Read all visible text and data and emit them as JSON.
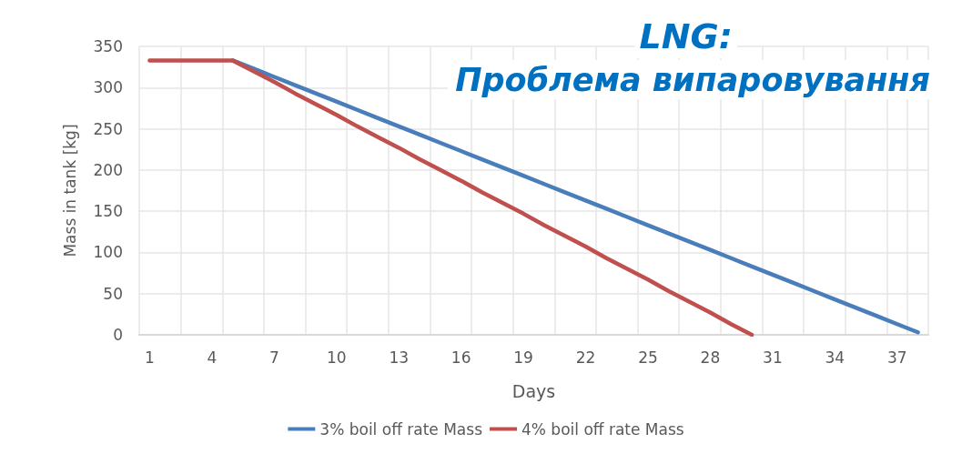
{
  "chart_data": {
    "type": "line",
    "title": "LNG:",
    "subtitle": "Проблема випаровування",
    "xlabel": "Days",
    "ylabel": "Mass in tank [kg]",
    "categories": [
      "1",
      null,
      null,
      "4",
      null,
      null,
      "7",
      null,
      null,
      "10",
      null,
      null,
      "13",
      null,
      null,
      "16",
      null,
      null,
      "19",
      null,
      null,
      "22",
      null,
      null,
      "25",
      null,
      null,
      "28",
      null,
      null,
      "31",
      null,
      null,
      "34",
      null,
      null,
      "37",
      null
    ],
    "series": [
      {
        "name": "3% boil off rate Mass",
        "color": "#4a7ebb",
        "values": [
          null,
          null,
          null,
          null,
          333,
          323,
          313,
          303,
          293,
          283,
          273,
          263,
          253,
          243,
          233,
          223,
          213,
          203,
          193,
          183,
          173,
          163,
          153,
          143,
          133,
          123,
          113,
          103,
          93,
          83,
          73,
          63,
          53,
          43,
          33,
          23,
          13,
          3
        ]
      },
      {
        "name": "4% boil off rate Mass",
        "color": "#c0504d",
        "values": [
          333,
          333,
          333,
          333,
          333,
          320,
          307,
          293,
          280,
          267,
          253,
          240,
          227,
          213,
          200,
          187,
          173,
          160,
          147,
          133,
          120,
          107,
          93,
          80,
          67,
          53,
          40,
          27,
          13,
          0,
          null,
          null,
          null,
          null,
          null,
          null,
          null,
          null
        ]
      }
    ],
    "ylim": [
      0,
      350
    ],
    "yticks": [
      0,
      50,
      100,
      150,
      200,
      250,
      300,
      350
    ],
    "grid": true,
    "legend": "bottom",
    "marker": "none",
    "line_style": "solid"
  }
}
